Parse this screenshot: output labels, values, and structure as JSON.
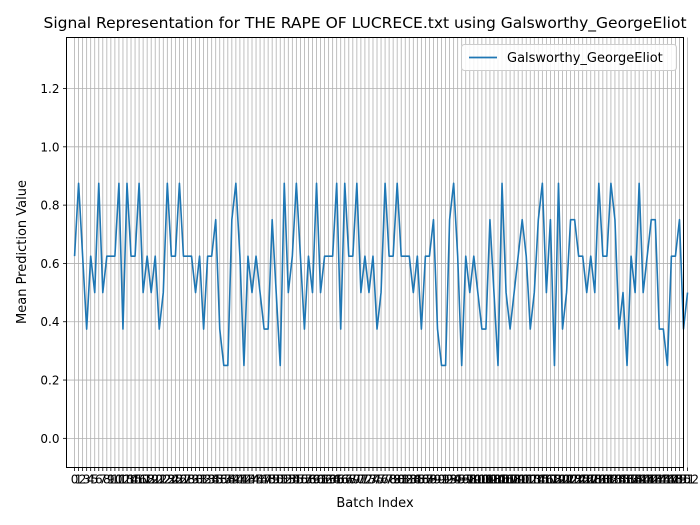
{
  "chart_data": {
    "type": "line",
    "title": "Signal Representation for THE RAPE OF LUCRECE.txt using Galsworthy_GeorgeEliot",
    "xlabel": "Batch Index",
    "ylabel": "Mean Prediction Value",
    "ylim": [
      -0.1,
      1.375
    ],
    "yticks": [
      0.0,
      0.2,
      0.4,
      0.6,
      0.8,
      1.0,
      1.2
    ],
    "ytick_labels": [
      "0.0",
      "0.2",
      "0.4",
      "0.6",
      "0.8",
      "1.0",
      "1.2"
    ],
    "xlim": [
      -2,
      151
    ],
    "grid": true,
    "legend_position": "top-right",
    "series": [
      {
        "name": "Galsworthy_GeorgeEliot",
        "color": "#1f77b4",
        "values": [
          0.625,
          0.875,
          0.625,
          0.375,
          0.625,
          0.5,
          0.875,
          0.5,
          0.625,
          0.625,
          0.625,
          0.875,
          0.375,
          0.875,
          0.625,
          0.625,
          0.875,
          0.5,
          0.625,
          0.5,
          0.625,
          0.375,
          0.5,
          0.875,
          0.625,
          0.625,
          0.875,
          0.625,
          0.625,
          0.625,
          0.5,
          0.625,
          0.375,
          0.625,
          0.625,
          0.75,
          0.375,
          0.25,
          0.25,
          0.75,
          0.875,
          0.625,
          0.25,
          0.625,
          0.5,
          0.625,
          0.5,
          0.375,
          0.375,
          0.75,
          0.5,
          0.25,
          0.875,
          0.5,
          0.625,
          0.875,
          0.625,
          0.375,
          0.625,
          0.5,
          0.875,
          0.5,
          0.625,
          0.625,
          0.625,
          0.875,
          0.375,
          0.875,
          0.625,
          0.625,
          0.875,
          0.5,
          0.625,
          0.5,
          0.625,
          0.375,
          0.5,
          0.875,
          0.625,
          0.625,
          0.875,
          0.625,
          0.625,
          0.625,
          0.5,
          0.625,
          0.375,
          0.625,
          0.625,
          0.75,
          0.375,
          0.25,
          0.25,
          0.75,
          0.875,
          0.625,
          0.25,
          0.625,
          0.5,
          0.625,
          0.5,
          0.375,
          0.375,
          0.75,
          0.5,
          0.25,
          0.875,
          0.5,
          0.375,
          0.5,
          0.625,
          0.75,
          0.625,
          0.375,
          0.5,
          0.75,
          0.875,
          0.5,
          0.75,
          0.25,
          0.875,
          0.375,
          0.5,
          0.75,
          0.75,
          0.625,
          0.625,
          0.5,
          0.625,
          0.5,
          0.875,
          0.625,
          0.625,
          0.875,
          0.75,
          0.375,
          0.5,
          0.25,
          0.625,
          0.5,
          0.875,
          0.5,
          0.625,
          0.75,
          0.75,
          0.375,
          0.375,
          0.25,
          0.625,
          0.625,
          0.75,
          0.375,
          0.5
        ]
      }
    ],
    "xtick_start": 0,
    "xtick_step": 1
  }
}
